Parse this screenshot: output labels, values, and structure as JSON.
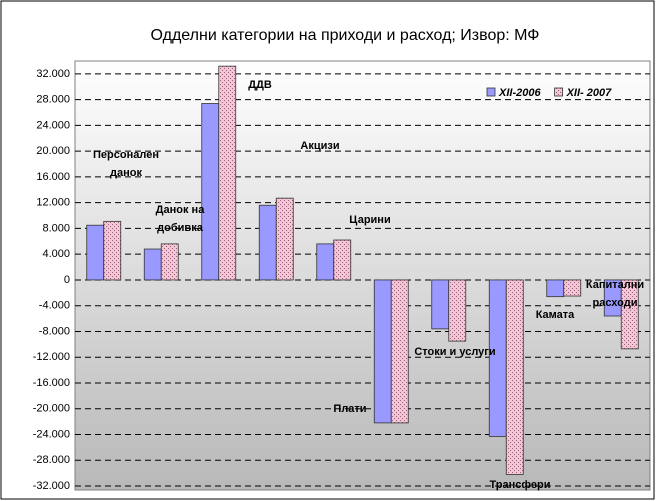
{
  "chart_data": {
    "type": "bar",
    "title": "Одделни категории на приходи и расход; Извор: МФ",
    "categories": [
      "Персонален данок",
      "Данок на добивка",
      "ДДВ",
      "Акцизи",
      "Царини",
      "Плати",
      "Стоки и услуги",
      "Трансфери",
      "Камата",
      "Капитални расходи"
    ],
    "series": [
      {
        "name": "XII-2006",
        "color": "#9999ff",
        "values": [
          8500,
          4800,
          27400,
          11600,
          5600,
          -22200,
          -7600,
          -24300,
          -2600,
          -5600
        ]
      },
      {
        "name": "XII- 2007",
        "color": "#f2c6d6",
        "values": [
          9100,
          5600,
          33200,
          12700,
          6200,
          -22200,
          -9500,
          -30200,
          -2500,
          -10700
        ]
      }
    ],
    "ylim": [
      -32000,
      34000
    ],
    "yticks": [
      {
        "value": -32000,
        "label": "-32.000"
      },
      {
        "value": -28000,
        "label": "-28.000"
      },
      {
        "value": -24000,
        "label": "-24.000"
      },
      {
        "value": -20000,
        "label": "-20.000"
      },
      {
        "value": -16000,
        "label": "-16.000"
      },
      {
        "value": -12000,
        "label": "-12.000"
      },
      {
        "value": -8000,
        "label": "-8.000"
      },
      {
        "value": -4000,
        "label": "-4.000"
      },
      0,
      {
        "value": 4000,
        "label": "4.000"
      },
      {
        "value": 8000,
        "label": "8.000"
      },
      {
        "value": 12000,
        "label": "12.000"
      },
      {
        "value": 16000,
        "label": "16.000"
      },
      {
        "value": 20000,
        "label": "20.000"
      },
      {
        "value": 24000,
        "label": "24.000"
      },
      {
        "value": 28000,
        "label": "28.000"
      },
      {
        "value": 32000,
        "label": "32.000"
      }
    ],
    "grid": true,
    "legend": "top-right"
  }
}
